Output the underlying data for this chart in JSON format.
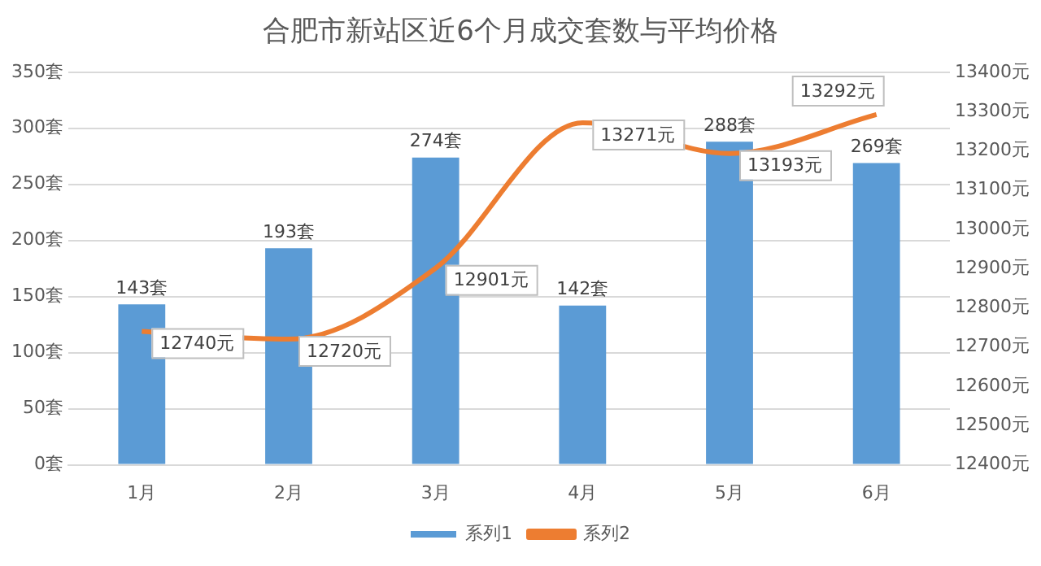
{
  "chart_data": {
    "type": "bar",
    "title": "合肥市新站区近6个月成交套数与平均价格",
    "categories": [
      "1月",
      "2月",
      "3月",
      "4月",
      "5月",
      "6月"
    ],
    "series": [
      {
        "name": "系列1",
        "color": "#5b9bd5",
        "values": [
          143,
          193,
          274,
          142,
          288,
          269
        ],
        "value_labels": [
          "143套",
          "193套",
          "274套",
          "142套",
          "288套",
          "269套"
        ]
      },
      {
        "name": "系列2",
        "type": "line",
        "axis": "y2",
        "color": "#ed7d31",
        "marker": "none",
        "line_style": "solid",
        "values": [
          12740,
          12720,
          12901,
          13271,
          13193,
          13292
        ],
        "value_labels": [
          "12740元",
          "12720元",
          "12901元",
          "13271元",
          "13193元",
          "13292元"
        ]
      }
    ],
    "ylim": [
      0,
      350
    ],
    "yticks": [
      {
        "value": 0,
        "label": "0套"
      },
      {
        "value": 50,
        "label": "50套"
      },
      {
        "value": 100,
        "label": "100套"
      },
      {
        "value": 150,
        "label": "150套"
      },
      {
        "value": 200,
        "label": "200套"
      },
      {
        "value": 250,
        "label": "250套"
      },
      {
        "value": 300,
        "label": "300套"
      },
      {
        "value": 350,
        "label": "350套"
      }
    ],
    "y2lim": [
      12400,
      13400
    ],
    "y2ticks": [
      {
        "value": 12400,
        "label": "12400元"
      },
      {
        "value": 12500,
        "label": "12500元"
      },
      {
        "value": 12600,
        "label": "12600元"
      },
      {
        "value": 12700,
        "label": "12700元"
      },
      {
        "value": 12800,
        "label": "12800元"
      },
      {
        "value": 12900,
        "label": "12900元"
      },
      {
        "value": 13000,
        "label": "13000元"
      },
      {
        "value": 13100,
        "label": "13100元"
      },
      {
        "value": 13200,
        "label": "13200元"
      },
      {
        "value": 13300,
        "label": "13300元"
      },
      {
        "value": 13400,
        "label": "13400元"
      }
    ],
    "grid": "y",
    "legend": "bottom"
  }
}
